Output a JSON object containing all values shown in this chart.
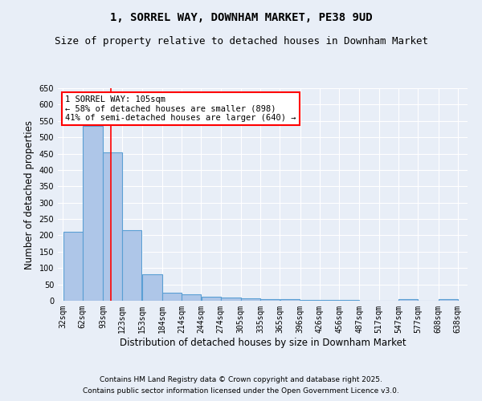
{
  "title": "1, SORREL WAY, DOWNHAM MARKET, PE38 9UD",
  "subtitle": "Size of property relative to detached houses in Downham Market",
  "xlabel": "Distribution of detached houses by size in Downham Market",
  "ylabel": "Number of detached properties",
  "bar_left_edges": [
    32,
    62,
    93,
    123,
    153,
    184,
    214,
    244,
    274,
    305,
    335,
    365,
    396,
    426,
    456,
    487,
    517,
    547,
    577,
    608
  ],
  "bar_widths": [
    30,
    31,
    30,
    30,
    31,
    30,
    30,
    30,
    31,
    30,
    30,
    31,
    30,
    30,
    31,
    30,
    30,
    30,
    31,
    30
  ],
  "bar_heights": [
    210,
    535,
    455,
    215,
    80,
    25,
    20,
    13,
    10,
    7,
    5,
    5,
    3,
    2,
    2,
    1,
    1,
    4,
    1,
    4
  ],
  "bar_color": "#aec6e8",
  "bar_edge_color": "#5a9fd4",
  "bar_edge_width": 0.8,
  "red_line_x": 105,
  "ylim": [
    0,
    650
  ],
  "yticks": [
    0,
    50,
    100,
    150,
    200,
    250,
    300,
    350,
    400,
    450,
    500,
    550,
    600,
    650
  ],
  "xtick_labels": [
    "32sqm",
    "62sqm",
    "93sqm",
    "123sqm",
    "153sqm",
    "184sqm",
    "214sqm",
    "244sqm",
    "274sqm",
    "305sqm",
    "335sqm",
    "365sqm",
    "396sqm",
    "426sqm",
    "456sqm",
    "487sqm",
    "517sqm",
    "547sqm",
    "577sqm",
    "608sqm",
    "638sqm"
  ],
  "xtick_positions": [
    32,
    62,
    93,
    123,
    153,
    184,
    214,
    244,
    274,
    305,
    335,
    365,
    396,
    426,
    456,
    487,
    517,
    547,
    577,
    608,
    638
  ],
  "annotation_text": "1 SORREL WAY: 105sqm\n← 58% of detached houses are smaller (898)\n41% of semi-detached houses are larger (640) →",
  "annotation_box_color": "white",
  "annotation_box_edge_color": "red",
  "footer_line1": "Contains HM Land Registry data © Crown copyright and database right 2025.",
  "footer_line2": "Contains public sector information licensed under the Open Government Licence v3.0.",
  "background_color": "#e8eef7",
  "grid_color": "white",
  "title_fontsize": 10,
  "subtitle_fontsize": 9,
  "axis_label_fontsize": 8.5,
  "tick_fontsize": 7,
  "annotation_fontsize": 7.5,
  "footer_fontsize": 6.5
}
